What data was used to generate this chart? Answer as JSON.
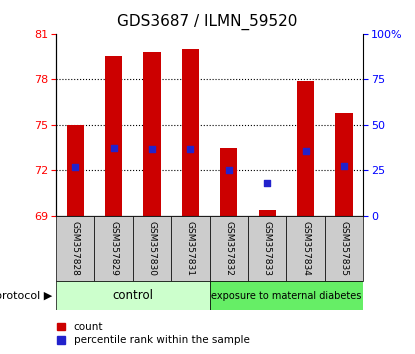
{
  "title": "GDS3687 / ILMN_59520",
  "samples": [
    "GSM357828",
    "GSM357829",
    "GSM357830",
    "GSM357831",
    "GSM357832",
    "GSM357833",
    "GSM357834",
    "GSM357835"
  ],
  "bar_bottoms": [
    69,
    69,
    69,
    69,
    69,
    69,
    69,
    69
  ],
  "bar_tops": [
    75.0,
    79.5,
    79.8,
    80.0,
    73.5,
    69.4,
    77.9,
    75.8
  ],
  "percentile_values": [
    72.2,
    73.5,
    73.4,
    73.4,
    72.0,
    71.2,
    73.3,
    72.3
  ],
  "ylim_left": [
    69,
    81
  ],
  "ylim_right": [
    0,
    100
  ],
  "yticks_left": [
    69,
    72,
    75,
    78,
    81
  ],
  "yticks_right": [
    0,
    25,
    50,
    75,
    100
  ],
  "ytick_right_labels": [
    "0",
    "25",
    "50",
    "75",
    "100%"
  ],
  "bar_color": "#cc0000",
  "dot_color": "#2222cc",
  "group1_label": "control",
  "group2_label": "exposure to maternal diabetes",
  "group1_indices": [
    0,
    1,
    2,
    3
  ],
  "group2_indices": [
    4,
    5,
    6,
    7
  ],
  "group1_bg": "#ccffcc",
  "group2_bg": "#66ee66",
  "protocol_label": "protocol",
  "legend_count_label": "count",
  "legend_pct_label": "percentile rank within the sample",
  "xlabel_bg": "#cccccc"
}
